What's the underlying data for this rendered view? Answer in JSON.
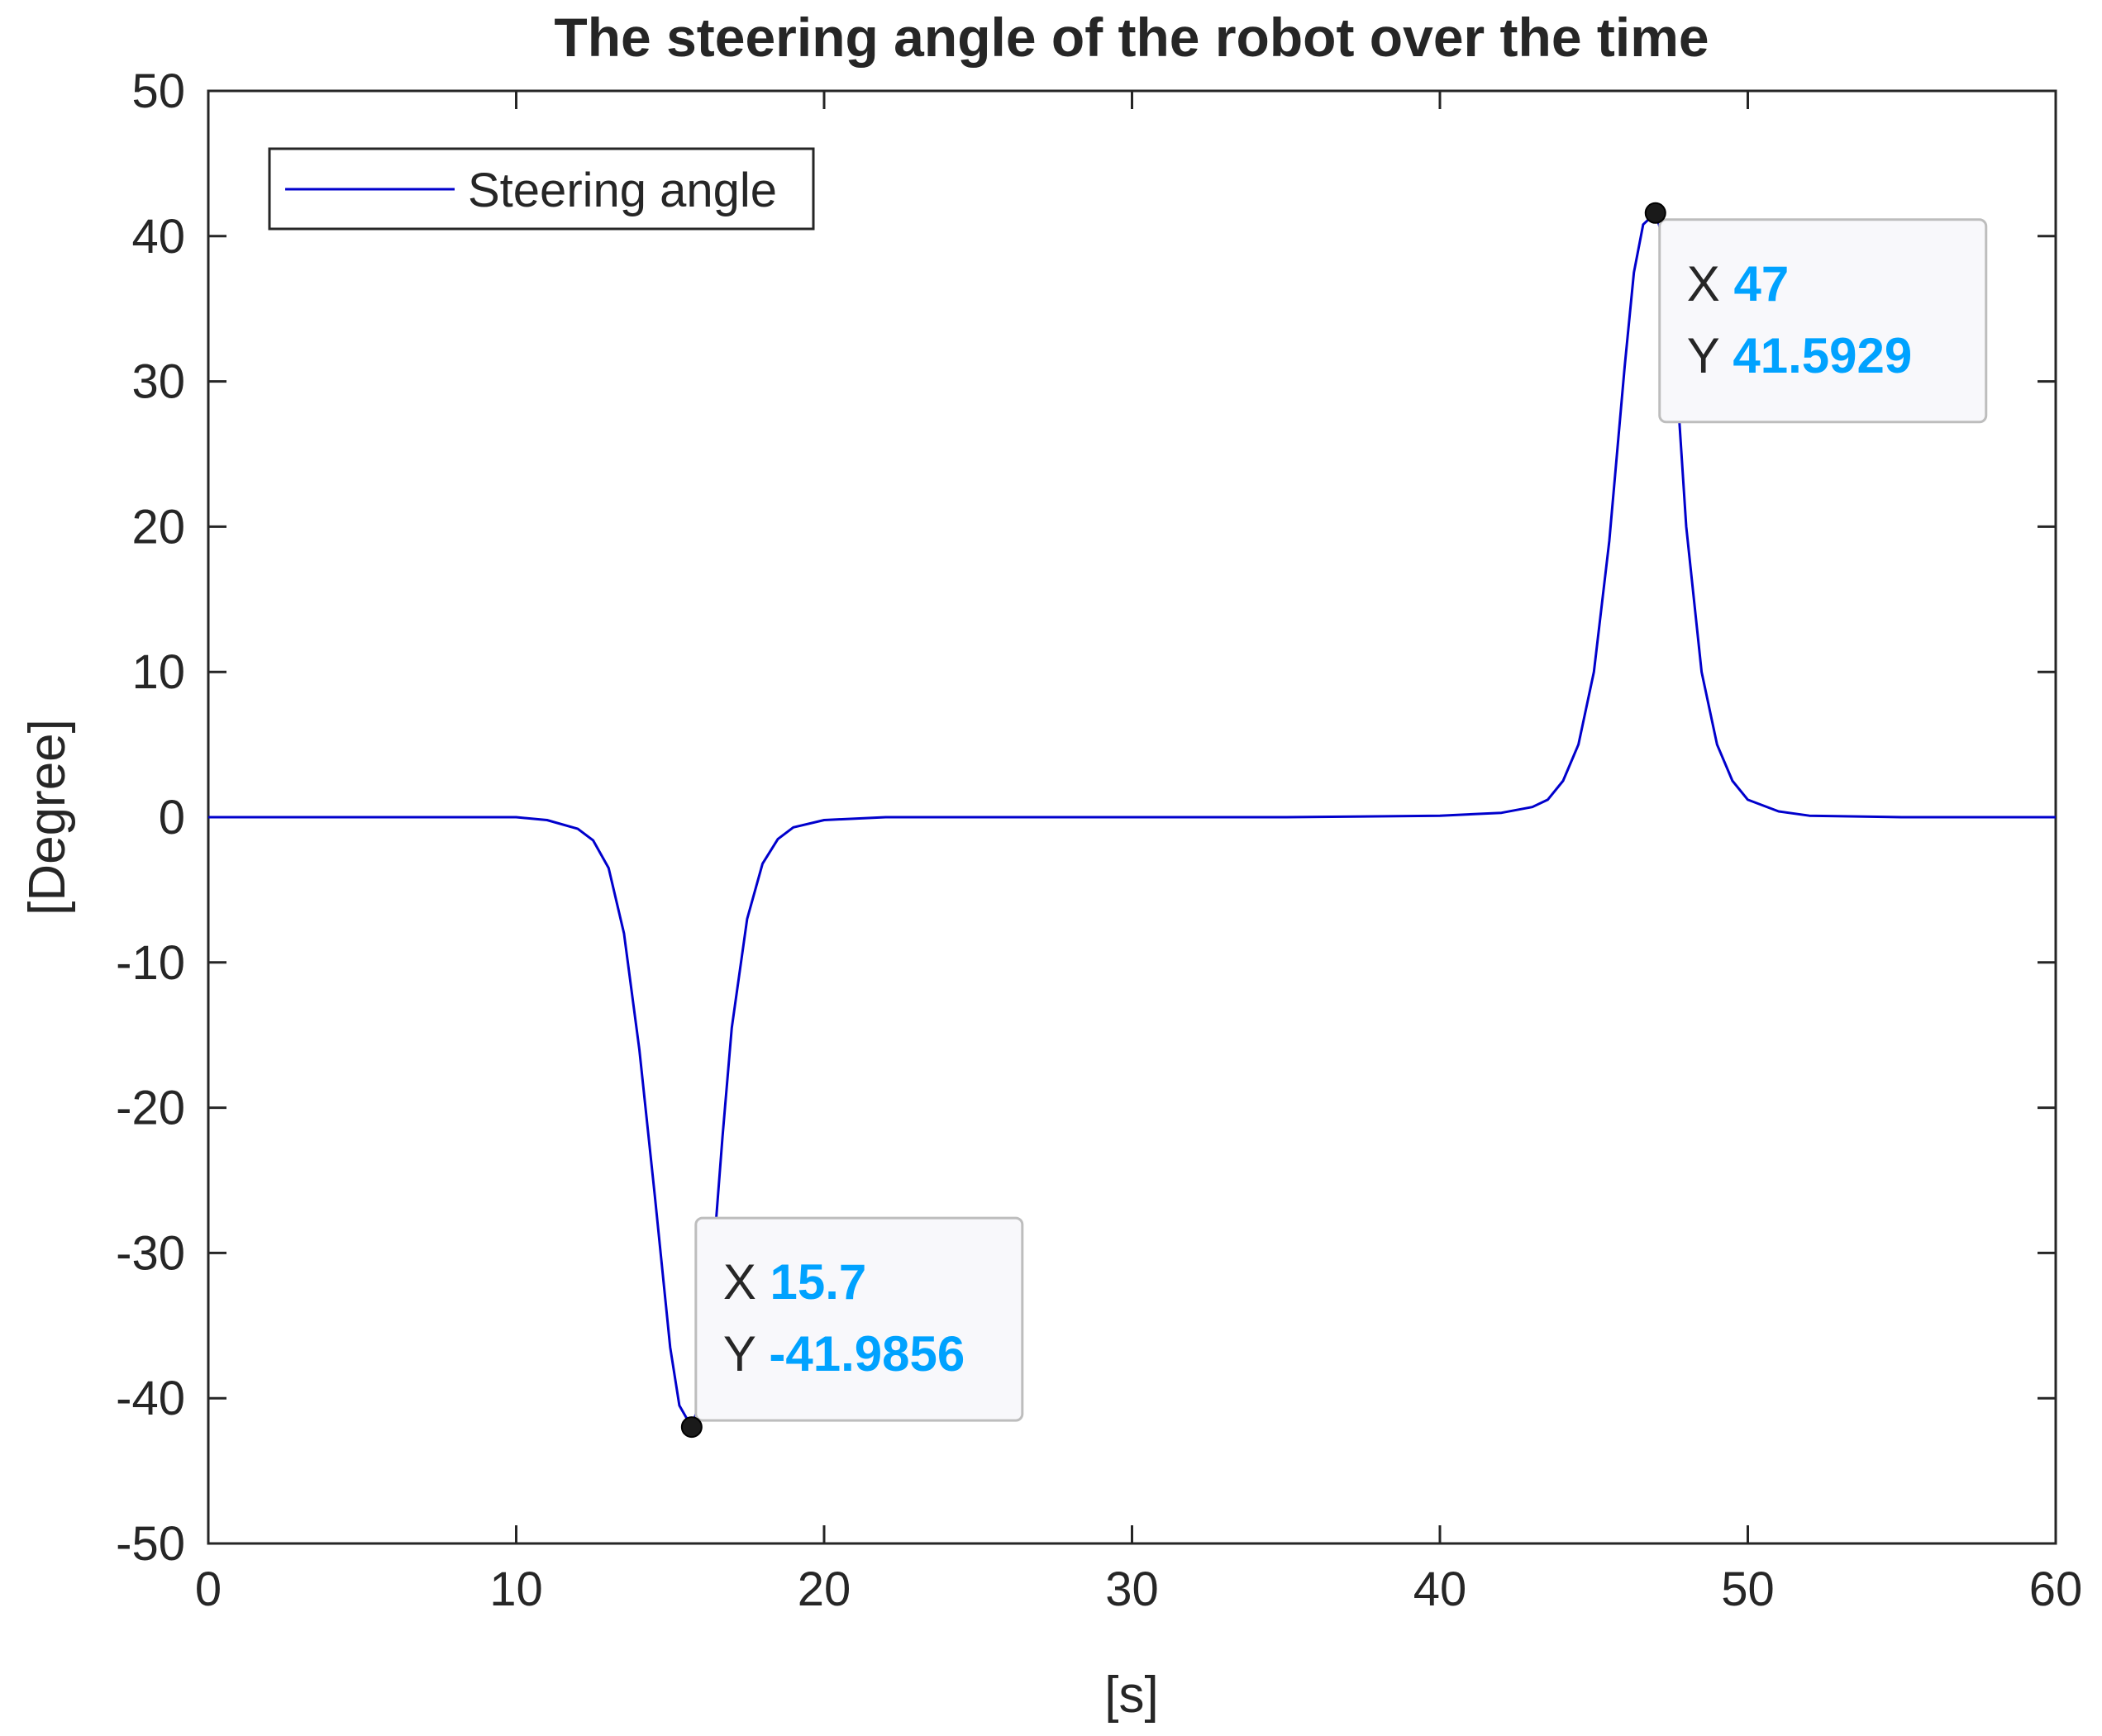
{
  "colors": {
    "line": "#0000cc",
    "axis": "#262626",
    "datatip_value": "#00a2ff",
    "datatip_bg": "#f8f8fb",
    "datatip_border": "#bdbdbd",
    "marker": "#1a1a1a"
  },
  "chart_data": {
    "type": "line",
    "title": "The steering angle of the robot over the time",
    "xlabel": "[s]",
    "ylabel": "[Degree]",
    "xlim": [
      0,
      60
    ],
    "ylim": [
      -50,
      50
    ],
    "xticks": [
      0,
      10,
      20,
      30,
      40,
      50,
      60
    ],
    "yticks": [
      -50,
      -40,
      -30,
      -20,
      -10,
      0,
      10,
      20,
      30,
      40,
      50
    ],
    "grid": false,
    "legend": {
      "position": "top-left",
      "entries": [
        "Steering angle"
      ]
    },
    "series": [
      {
        "name": "Steering angle",
        "x": [
          0,
          5,
          10,
          11,
          12,
          12.5,
          13,
          13.5,
          14,
          14.5,
          15,
          15.3,
          15.7,
          16.0,
          16.3,
          16.7,
          17.0,
          17.5,
          18.0,
          18.5,
          19.0,
          20.0,
          22.0,
          25,
          30,
          35,
          40,
          42,
          43,
          43.5,
          44,
          44.5,
          45,
          45.5,
          46,
          46.3,
          46.6,
          47,
          47.3,
          47.6,
          48,
          48.5,
          49,
          49.5,
          50,
          51,
          52,
          55,
          60
        ],
        "y": [
          0,
          0,
          0,
          -0.2,
          -0.8,
          -1.6,
          -3.5,
          -8.0,
          -16.0,
          -26.0,
          -36.5,
          -40.5,
          -41.9856,
          -40.0,
          -33.0,
          -22.0,
          -14.5,
          -7.0,
          -3.2,
          -1.5,
          -0.7,
          -0.2,
          0,
          0,
          0,
          0,
          0.1,
          0.3,
          0.7,
          1.2,
          2.5,
          5.0,
          10.0,
          19.0,
          31.0,
          37.5,
          40.8,
          41.5929,
          39.5,
          33.0,
          20.0,
          10.0,
          5.0,
          2.5,
          1.2,
          0.4,
          0.1,
          0,
          0
        ]
      }
    ],
    "datatips": [
      {
        "x_label": "X",
        "y_label": "Y",
        "x": 47,
        "y": 41.5929,
        "x_text": "47",
        "y_text": "41.5929"
      },
      {
        "x_label": "X",
        "y_label": "Y",
        "x": 15.7,
        "y": -41.9856,
        "x_text": "15.7",
        "y_text": "-41.9856"
      }
    ]
  }
}
